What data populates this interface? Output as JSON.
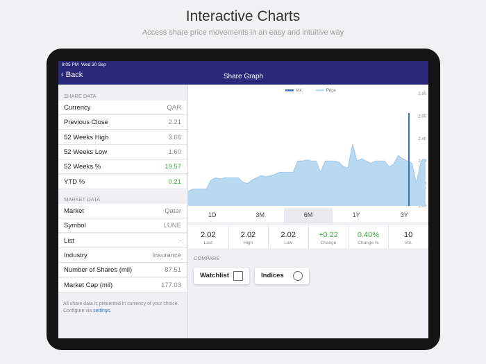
{
  "header": {
    "title": "Interactive Charts",
    "subtitle": "Access share price movements in an easy and intuitive way"
  },
  "status_bar": {
    "time": "8:05 PM",
    "date": "Wed 30 Sep"
  },
  "nav": {
    "back": "Back",
    "title": "Share Graph"
  },
  "share_data": {
    "heading": "SHARE DATA",
    "rows": [
      [
        "Currency",
        "QAR"
      ],
      [
        "Previous Close",
        "2.21"
      ],
      [
        "52 Weeks High",
        "3.66"
      ],
      [
        "52 Weeks Low",
        "1.60"
      ],
      [
        "52 Weeks %",
        "19.57"
      ],
      [
        "YTD %",
        "0.21"
      ]
    ]
  },
  "market_data": {
    "heading": "MARKET DATA",
    "rows": [
      [
        "Market",
        "Qatar"
      ],
      [
        "Symbol",
        "LUNE"
      ],
      [
        "List",
        "-"
      ],
      [
        "Industry",
        "Insurance"
      ],
      [
        "Number of Shares (mil)",
        "87.51"
      ],
      [
        "Market Cap (mil)",
        "177.03"
      ]
    ]
  },
  "footnote": {
    "text": "All share data is presented in currency of your choice. Configure via ",
    "link": "settings."
  },
  "share_graph": {
    "legend": [
      "Vol.",
      "Price"
    ],
    "price_color": "#b9d9f0",
    "vol_color": "#3d6db5",
    "ylim": [
      1.8,
      2.8
    ],
    "yticks": [
      {
        "value": 1.8,
        "label": "1.80"
      },
      {
        "value": 2.0,
        "label": "2.00"
      },
      {
        "value": 2.2,
        "label": "2.20"
      },
      {
        "value": 2.4,
        "label": "2.40"
      },
      {
        "value": 2.6,
        "label": "2.60"
      },
      {
        "value": 2.8,
        "label": "2.80"
      }
    ],
    "price": [
      1.93,
      1.95,
      1.95,
      1.95,
      1.95,
      2.03,
      2.05,
      2.04,
      2.05,
      2.05,
      2.05,
      2.05,
      2.01,
      2.0,
      2.03,
      2.05,
      2.07,
      2.06,
      2.07,
      2.08,
      2.1,
      2.1,
      2.1,
      2.1,
      2.2,
      2.2,
      2.21,
      2.2,
      2.2,
      2.1,
      2.2,
      2.2,
      2.2,
      2.19,
      2.15,
      2.14,
      2.35,
      2.2,
      2.22,
      2.2,
      2.18,
      2.2,
      2.2,
      2.2,
      2.15,
      2.17,
      2.25,
      2.22,
      2.2,
      2.18,
      2.0,
      2.2,
      2.22
    ]
  },
  "periods": {
    "items": [
      "1D",
      "3M",
      "6M",
      "1Y",
      "3Y"
    ],
    "selected": "6M"
  },
  "stats": [
    [
      "2.02",
      "Last"
    ],
    [
      "2.02",
      "High"
    ],
    [
      "2.02",
      "Low"
    ],
    [
      "+0.22",
      "Change"
    ],
    [
      "0.40%",
      "Change %"
    ],
    [
      "10",
      "Vol."
    ]
  ],
  "compare": {
    "heading": "COMPARE",
    "buttons": [
      "Watchlist",
      "Indices"
    ]
  }
}
